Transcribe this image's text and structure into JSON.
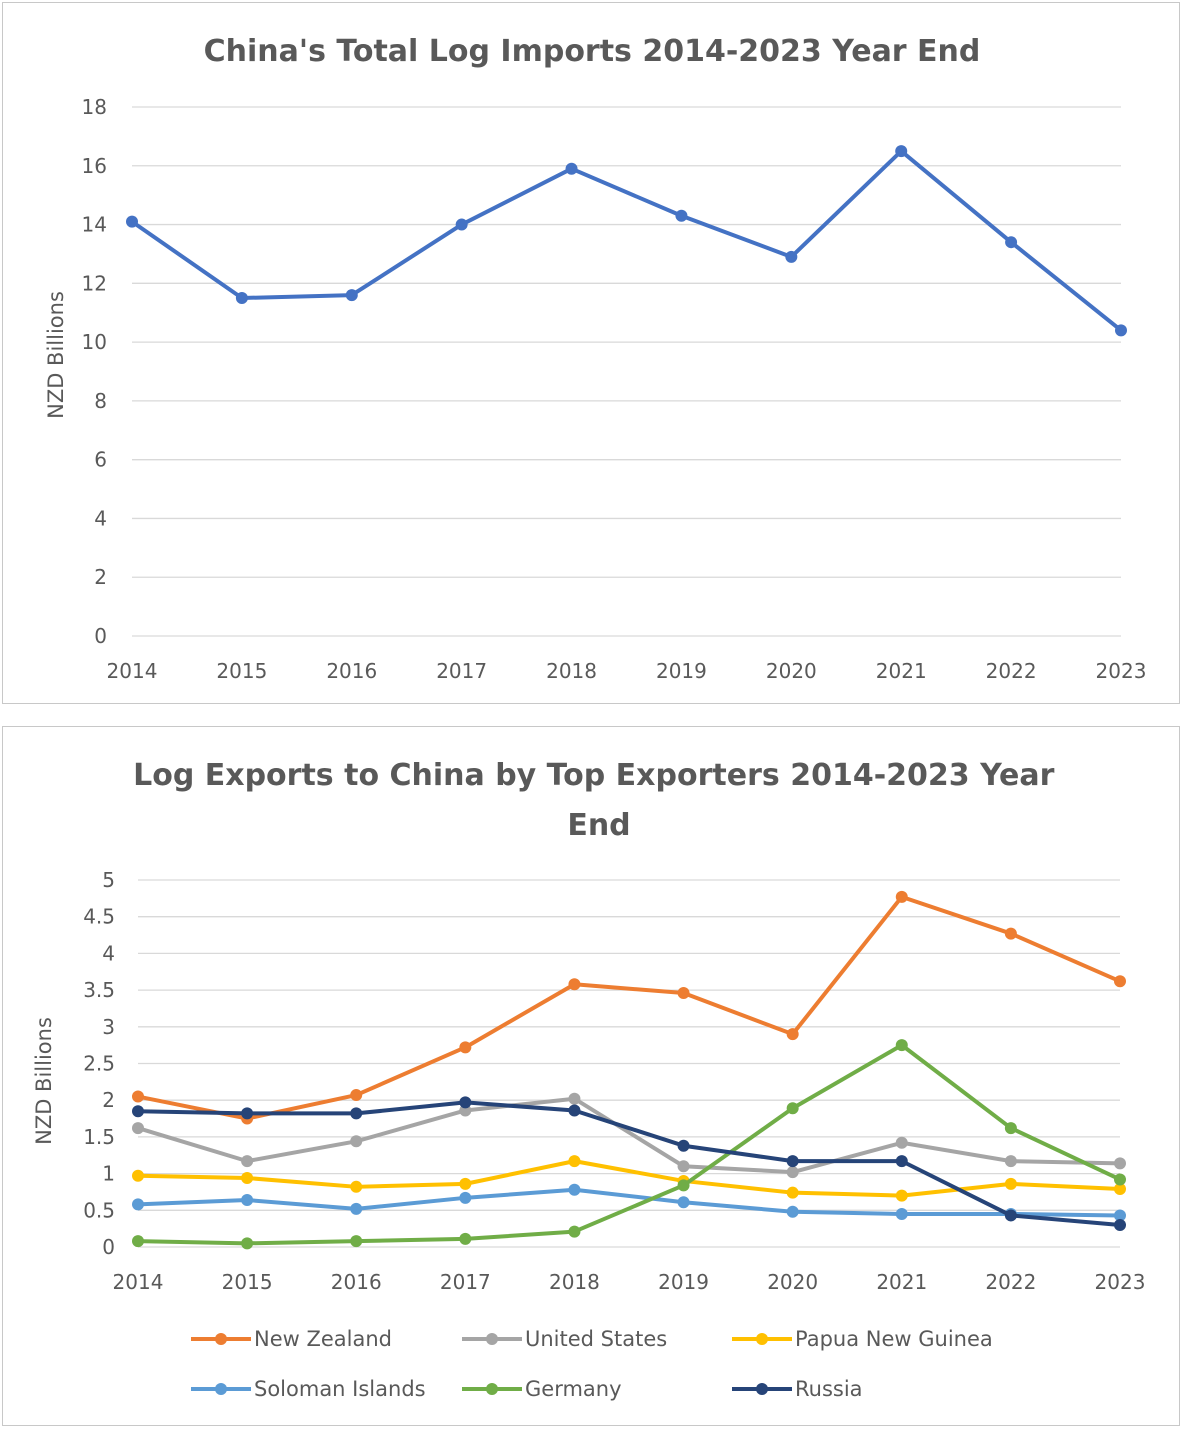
{
  "chart_data": [
    {
      "type": "line",
      "title": "China's Total Log Imports 2014-2023 Year End",
      "ylabel": "NZD Billions",
      "xlabel": "",
      "categories": [
        "2014",
        "2015",
        "2016",
        "2017",
        "2018",
        "2019",
        "2020",
        "2021",
        "2022",
        "2023"
      ],
      "yticks": [
        "0",
        "2",
        "4",
        "6",
        "8",
        "10",
        "12",
        "14",
        "16",
        "18"
      ],
      "ylim": [
        0,
        18
      ],
      "grid": true,
      "legend": "none",
      "series": [
        {
          "color": "#4472C4",
          "values": [
            14.1,
            11.5,
            11.6,
            14.0,
            15.9,
            14.3,
            12.9,
            16.5,
            13.4,
            10.4
          ]
        }
      ]
    },
    {
      "type": "line",
      "title": "Log Exports to China by Top Exporters 2014-2023 Year End",
      "title_lines": [
        "Log Exports to China by Top Exporters 2014-2023 Year",
        "End"
      ],
      "ylabel": "NZD Billions",
      "xlabel": "",
      "categories": [
        "2014",
        "2015",
        "2016",
        "2017",
        "2018",
        "2019",
        "2020",
        "2021",
        "2022",
        "2023"
      ],
      "yticks": [
        "0",
        "0.5",
        "1",
        "1.5",
        "2",
        "2.5",
        "3",
        "3.5",
        "4",
        "4.5",
        "5"
      ],
      "ylim": [
        0,
        5
      ],
      "grid": true,
      "legend": "bottom",
      "series": [
        {
          "name": "New Zealand",
          "color": "#ED7D31",
          "values": [
            2.05,
            1.75,
            2.07,
            2.72,
            3.58,
            3.46,
            2.9,
            4.77,
            4.27,
            3.62
          ]
        },
        {
          "name": "United States",
          "color": "#A5A5A5",
          "values": [
            1.62,
            1.17,
            1.44,
            1.86,
            2.02,
            1.1,
            1.02,
            1.42,
            1.17,
            1.14
          ]
        },
        {
          "name": "Papua New Guinea",
          "color": "#FFC000",
          "values": [
            0.97,
            0.94,
            0.82,
            0.86,
            1.17,
            0.9,
            0.74,
            0.7,
            0.86,
            0.79
          ]
        },
        {
          "name": "Soloman Islands",
          "color": "#5B9BD5",
          "values": [
            0.58,
            0.64,
            0.52,
            0.67,
            0.78,
            0.61,
            0.48,
            0.45,
            0.45,
            0.43
          ]
        },
        {
          "name": "Germany",
          "color": "#70AD47",
          "values": [
            0.08,
            0.05,
            0.08,
            0.11,
            0.21,
            0.84,
            1.89,
            2.75,
            1.62,
            0.92
          ]
        },
        {
          "name": "Russia",
          "color": "#264478",
          "values": [
            1.85,
            1.82,
            1.82,
            1.97,
            1.86,
            1.38,
            1.17,
            1.17,
            0.43,
            0.3
          ]
        }
      ]
    }
  ]
}
